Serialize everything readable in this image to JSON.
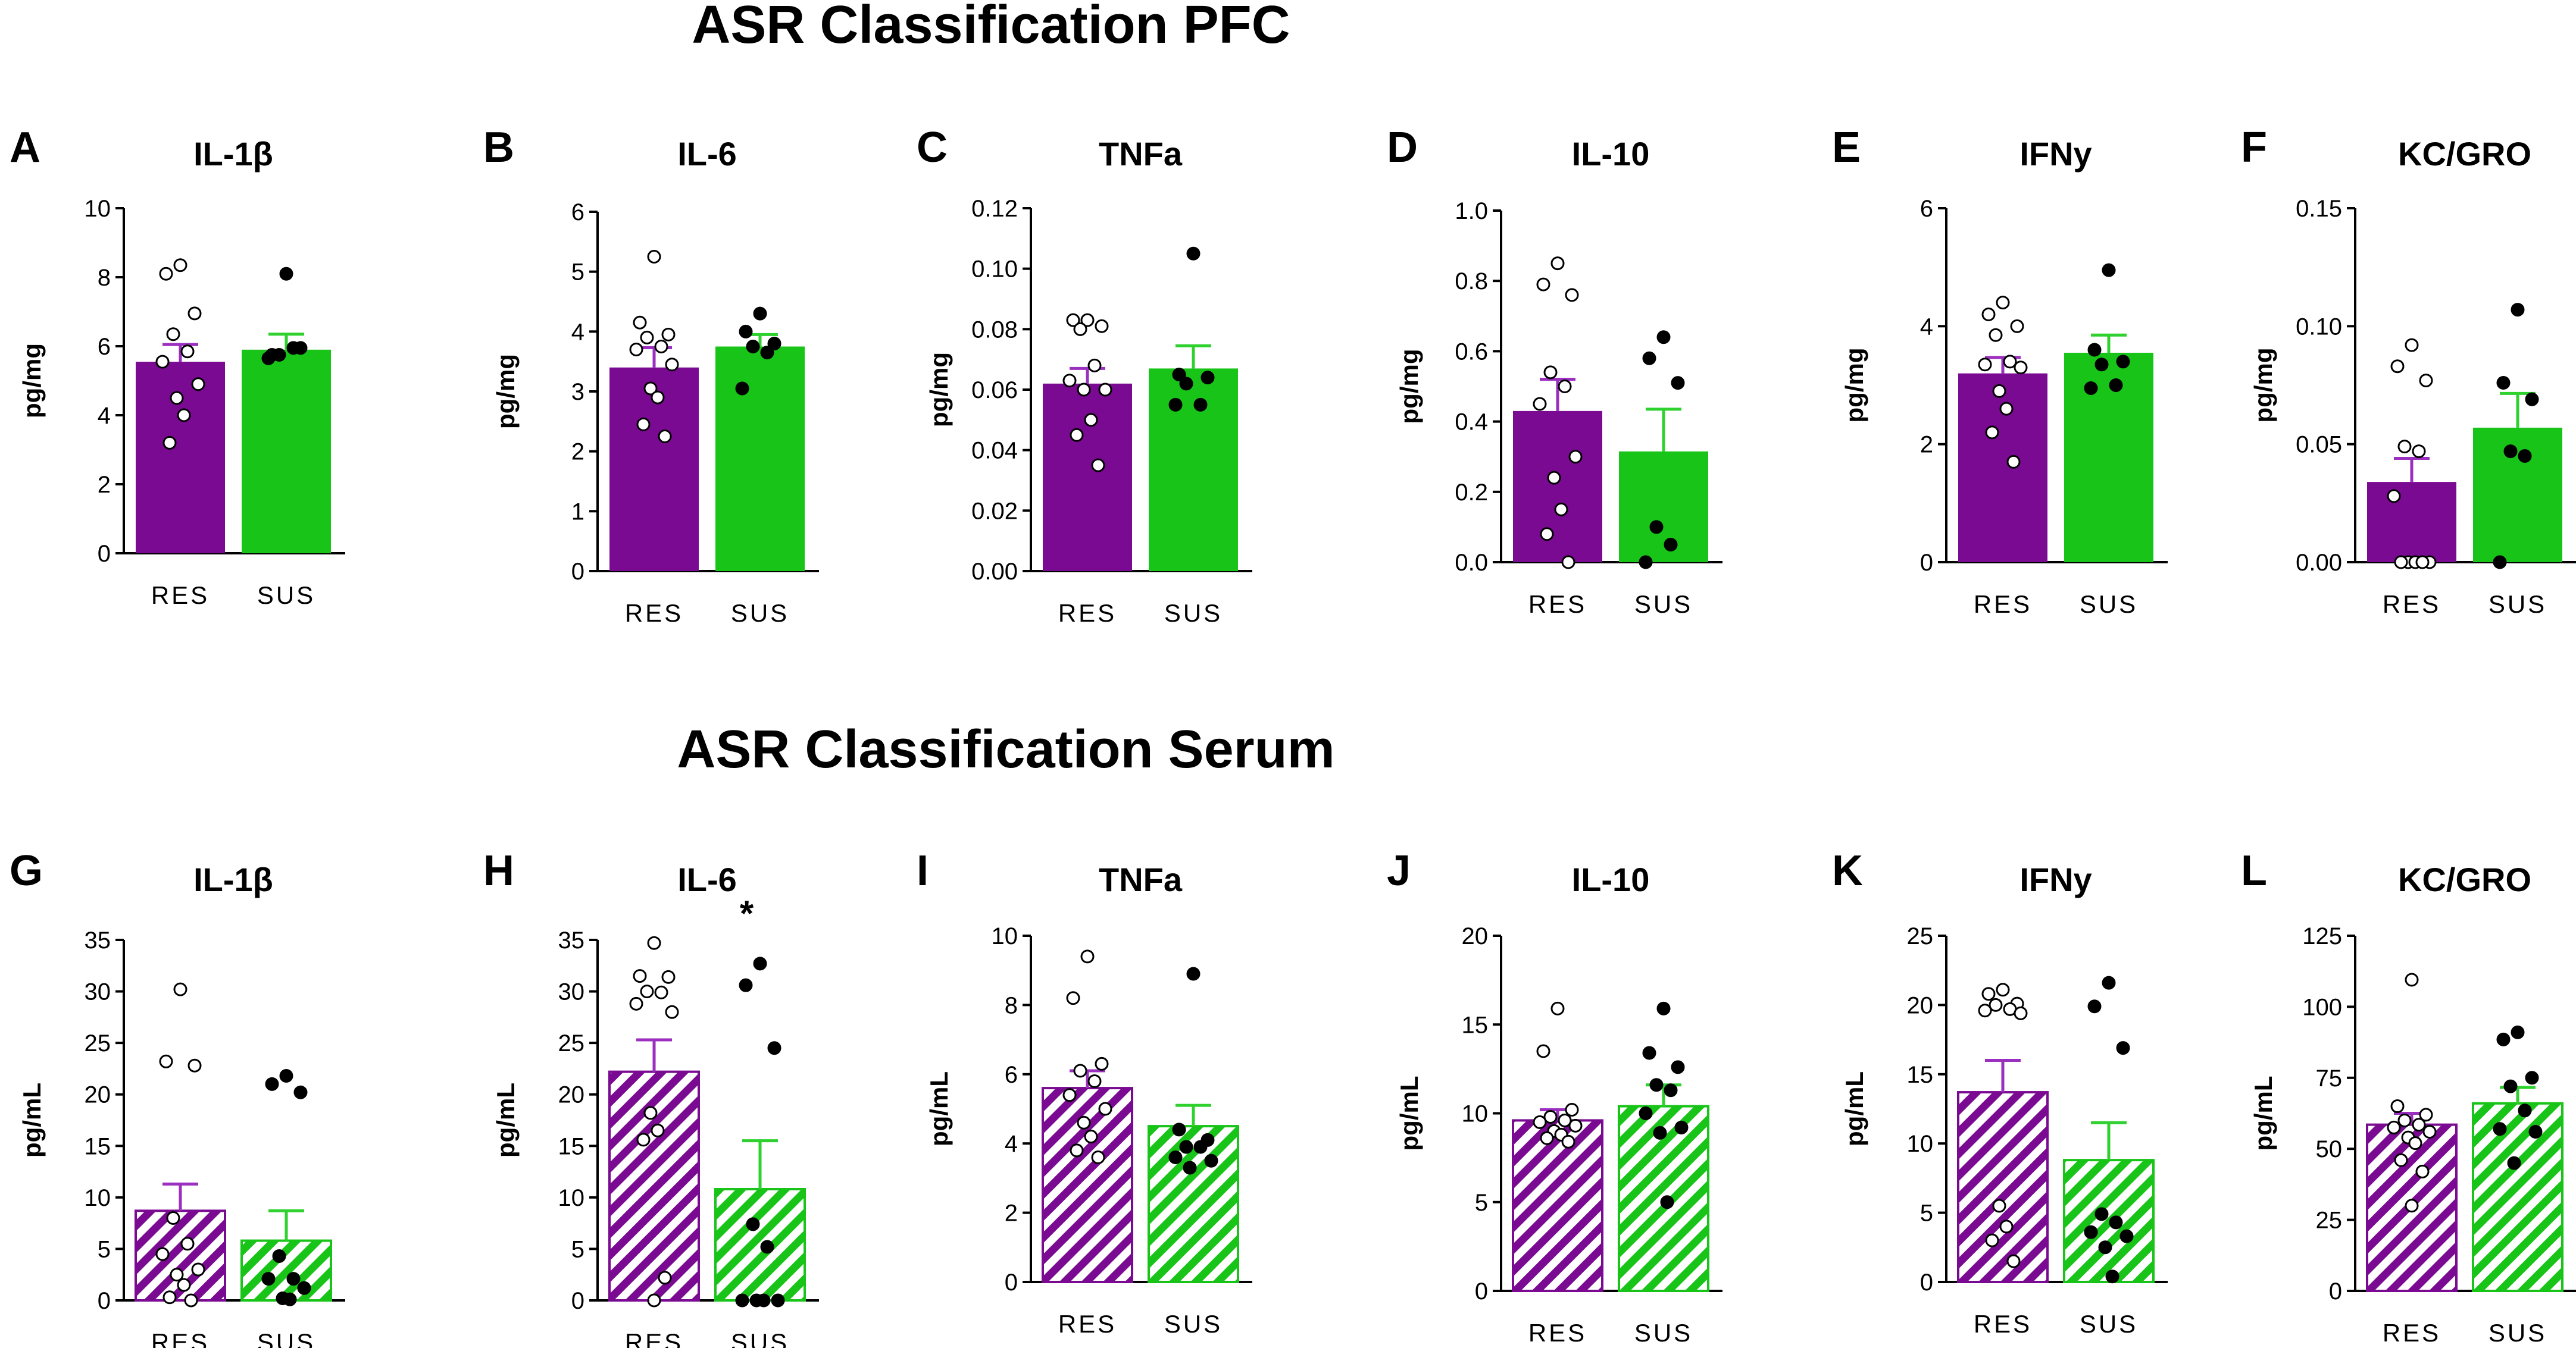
{
  "figure": {
    "row_titles": [
      "ASR Classification PFC",
      "ASR Classification Serum"
    ]
  },
  "colors": {
    "res": "#7a0a91",
    "sus": "#17c417",
    "res_error": "#9b2fbf",
    "sus_error": "#2fd12f",
    "open_point_fill": "#ffffff",
    "closed_point_fill": "#000000",
    "point_stroke": "#000000"
  },
  "chart_data": [
    {
      "type": "bar",
      "letter": "A",
      "title": "IL-1β",
      "ylabel": "pg/mg",
      "categories": [
        "RES",
        "SUS"
      ],
      "ylim": [
        0,
        10
      ],
      "yticks": [
        "0",
        "2",
        "4",
        "6",
        "8",
        "10"
      ],
      "tick_values": [
        0,
        2,
        4,
        6,
        8,
        10
      ],
      "pattern": "solid",
      "significance": "",
      "series": [
        {
          "name": "RES",
          "mean": 5.55,
          "sem": 0.5,
          "marker": "open",
          "points": [
            8.35,
            8.1,
            6.95,
            6.35,
            5.85,
            5.55,
            4.9,
            4.5,
            4.0,
            3.2
          ]
        },
        {
          "name": "SUS",
          "mean": 5.9,
          "sem": 0.45,
          "marker": "closed",
          "points": [
            8.1,
            5.75,
            5.95,
            5.75,
            5.95,
            5.65
          ]
        }
      ]
    },
    {
      "type": "bar",
      "letter": "B",
      "title": "IL-6",
      "ylabel": "pg/mg",
      "categories": [
        "RES",
        "SUS"
      ],
      "ylim": [
        0,
        6
      ],
      "yticks": [
        "0",
        "1",
        "2",
        "3",
        "4",
        "5",
        "6"
      ],
      "tick_values": [
        0,
        1,
        2,
        3,
        4,
        5,
        6
      ],
      "pattern": "solid",
      "significance": "",
      "series": [
        {
          "name": "RES",
          "mean": 3.4,
          "sem": 0.33,
          "marker": "open",
          "points": [
            5.25,
            4.15,
            3.95,
            3.9,
            3.75,
            3.7,
            3.45,
            3.05,
            2.9,
            2.45,
            2.25
          ]
        },
        {
          "name": "SUS",
          "mean": 3.75,
          "sem": 0.2,
          "marker": "closed",
          "points": [
            4.3,
            4.0,
            3.8,
            3.75,
            3.65,
            3.05
          ]
        }
      ]
    },
    {
      "type": "bar",
      "letter": "C",
      "title": "TNFa",
      "ylabel": "pg/mg",
      "categories": [
        "RES",
        "SUS"
      ],
      "ylim": [
        0,
        0.12
      ],
      "yticks": [
        "0.00",
        "0.02",
        "0.04",
        "0.06",
        "0.08",
        "0.10",
        "0.12"
      ],
      "tick_values": [
        0,
        0.02,
        0.04,
        0.06,
        0.08,
        0.1,
        0.12
      ],
      "pattern": "solid",
      "significance": "",
      "series": [
        {
          "name": "RES",
          "mean": 0.062,
          "sem": 0.005,
          "marker": "open",
          "points": [
            0.083,
            0.083,
            0.081,
            0.08,
            0.068,
            0.063,
            0.06,
            0.06,
            0.05,
            0.045,
            0.035
          ]
        },
        {
          "name": "SUS",
          "mean": 0.067,
          "sem": 0.0075,
          "marker": "closed",
          "points": [
            0.105,
            0.065,
            0.064,
            0.062,
            0.055,
            0.055
          ]
        }
      ]
    },
    {
      "type": "bar",
      "letter": "D",
      "title": "IL-10",
      "ylabel": "pg/mg",
      "categories": [
        "RES",
        "SUS"
      ],
      "ylim": [
        0,
        1.0
      ],
      "yticks": [
        "0.0",
        "0.2",
        "0.4",
        "0.6",
        "0.8",
        "1.0"
      ],
      "tick_values": [
        0,
        0.2,
        0.4,
        0.6,
        0.8,
        1.0
      ],
      "pattern": "solid",
      "significance": "",
      "series": [
        {
          "name": "RES",
          "mean": 0.43,
          "sem": 0.09,
          "marker": "open",
          "points": [
            0.85,
            0.79,
            0.76,
            0.54,
            0.5,
            0.45,
            0.3,
            0.24,
            0.15,
            0.08,
            0.0
          ]
        },
        {
          "name": "SUS",
          "mean": 0.315,
          "sem": 0.12,
          "marker": "closed",
          "points": [
            0.64,
            0.58,
            0.51,
            0.1,
            0.05,
            0.0
          ]
        }
      ]
    },
    {
      "type": "bar",
      "letter": "E",
      "title": "IFNy",
      "ylabel": "pg/mg",
      "categories": [
        "RES",
        "SUS"
      ],
      "ylim": [
        0,
        6
      ],
      "yticks": [
        "0",
        "2",
        "4",
        "6"
      ],
      "tick_values": [
        0,
        2,
        4,
        6
      ],
      "pattern": "solid",
      "significance": "",
      "series": [
        {
          "name": "RES",
          "mean": 3.2,
          "sem": 0.27,
          "marker": "open",
          "points": [
            4.4,
            4.2,
            4.0,
            3.85,
            3.4,
            3.35,
            3.3,
            2.9,
            2.6,
            2.2,
            1.7
          ]
        },
        {
          "name": "SUS",
          "mean": 3.55,
          "sem": 0.3,
          "marker": "closed",
          "points": [
            4.95,
            3.6,
            3.4,
            3.35,
            3.0,
            2.95
          ]
        }
      ]
    },
    {
      "type": "bar",
      "letter": "F",
      "title": "KC/GRO",
      "ylabel": "pg/mg",
      "categories": [
        "RES",
        "SUS"
      ],
      "ylim": [
        0,
        0.15
      ],
      "yticks": [
        "0.00",
        "0.05",
        "0.10",
        "0.15"
      ],
      "tick_values": [
        0,
        0.05,
        0.1,
        0.15
      ],
      "pattern": "solid",
      "significance": "",
      "series": [
        {
          "name": "RES",
          "mean": 0.034,
          "sem": 0.01,
          "marker": "open",
          "points": [
            0.092,
            0.083,
            0.077,
            0.049,
            0.047,
            0.028,
            0.0,
            0.0,
            0.0,
            0.0,
            0.0
          ]
        },
        {
          "name": "SUS",
          "mean": 0.057,
          "sem": 0.0145,
          "marker": "closed",
          "points": [
            0.107,
            0.076,
            0.069,
            0.047,
            0.045,
            0.0
          ]
        }
      ]
    },
    {
      "type": "bar",
      "letter": "G",
      "title": "IL-1β",
      "ylabel": "pg/mL",
      "categories": [
        "RES",
        "SUS"
      ],
      "ylim": [
        0,
        35
      ],
      "yticks": [
        "0",
        "5",
        "10",
        "15",
        "20",
        "25",
        "30",
        "35"
      ],
      "tick_values": [
        0,
        5,
        10,
        15,
        20,
        25,
        30,
        35
      ],
      "pattern": "hatched",
      "significance": "",
      "series": [
        {
          "name": "RES",
          "mean": 8.7,
          "sem": 2.6,
          "marker": "open",
          "points": [
            30.2,
            23.2,
            22.8,
            8.0,
            5.5,
            4.5,
            3.0,
            2.5,
            1.5,
            0.3,
            0.0
          ]
        },
        {
          "name": "SUS",
          "mean": 5.8,
          "sem": 2.9,
          "marker": "closed",
          "points": [
            21.8,
            21.0,
            20.2,
            4.3,
            2.1,
            2.1,
            1.2,
            0.2,
            0.1
          ]
        }
      ]
    },
    {
      "type": "bar",
      "letter": "H",
      "title": "IL-6",
      "ylabel": "pg/mL",
      "categories": [
        "RES",
        "SUS"
      ],
      "ylim": [
        0,
        35
      ],
      "yticks": [
        "0",
        "5",
        "10",
        "15",
        "20",
        "25",
        "30",
        "35"
      ],
      "tick_values": [
        0,
        5,
        10,
        15,
        20,
        25,
        30,
        35
      ],
      "pattern": "hatched",
      "significance": "*",
      "series": [
        {
          "name": "RES",
          "mean": 22.2,
          "sem": 3.1,
          "marker": "open",
          "points": [
            34.7,
            31.5,
            31.4,
            30.0,
            29.9,
            28.8,
            28.0,
            18.2,
            16.5,
            15.6,
            2.2,
            0.0
          ]
        },
        {
          "name": "SUS",
          "mean": 10.8,
          "sem": 4.7,
          "marker": "closed",
          "points": [
            32.7,
            30.6,
            24.5,
            7.4,
            5.2,
            0.0,
            0.0,
            0.0,
            0.0
          ]
        }
      ]
    },
    {
      "type": "bar",
      "letter": "I",
      "title": "TNFa",
      "ylabel": "pg/mL",
      "categories": [
        "RES",
        "SUS"
      ],
      "ylim": [
        0,
        10
      ],
      "yticks": [
        "0",
        "2",
        "4",
        "6",
        "8",
        "10"
      ],
      "tick_values": [
        0,
        2,
        4,
        6,
        8,
        10
      ],
      "pattern": "hatched",
      "significance": "",
      "series": [
        {
          "name": "RES",
          "mean": 5.6,
          "sem": 0.5,
          "marker": "open",
          "points": [
            9.4,
            8.2,
            6.3,
            6.1,
            5.8,
            5.4,
            5.0,
            4.6,
            4.2,
            3.8,
            3.6
          ]
        },
        {
          "name": "SUS",
          "mean": 4.5,
          "sem": 0.6,
          "marker": "closed",
          "points": [
            8.9,
            4.4,
            4.1,
            3.9,
            3.9,
            3.6,
            3.5,
            3.3
          ]
        }
      ]
    },
    {
      "type": "bar",
      "letter": "J",
      "title": "IL-10",
      "ylabel": "pg/mL",
      "categories": [
        "RES",
        "SUS"
      ],
      "ylim": [
        0,
        20
      ],
      "yticks": [
        "0",
        "5",
        "10",
        "15",
        "20"
      ],
      "tick_values": [
        0,
        5,
        10,
        15,
        20
      ],
      "pattern": "hatched",
      "significance": "",
      "series": [
        {
          "name": "RES",
          "mean": 9.6,
          "sem": 0.6,
          "marker": "open",
          "points": [
            15.9,
            13.5,
            10.2,
            9.8,
            9.6,
            9.5,
            9.3,
            9.0,
            8.8,
            8.6,
            8.4
          ]
        },
        {
          "name": "SUS",
          "mean": 10.4,
          "sem": 1.2,
          "marker": "closed",
          "points": [
            15.9,
            13.4,
            12.6,
            11.6,
            11.3,
            10.0,
            9.2,
            8.9,
            5.0
          ]
        }
      ]
    },
    {
      "type": "bar",
      "letter": "K",
      "title": "IFNy",
      "ylabel": "pg/mL",
      "categories": [
        "RES",
        "SUS"
      ],
      "ylim": [
        0,
        25
      ],
      "yticks": [
        "0",
        "5",
        "10",
        "15",
        "20",
        "25"
      ],
      "tick_values": [
        0,
        5,
        10,
        15,
        20,
        25
      ],
      "pattern": "hatched",
      "significance": "",
      "series": [
        {
          "name": "RES",
          "mean": 13.7,
          "sem": 2.3,
          "marker": "open",
          "points": [
            21.1,
            20.8,
            20.1,
            20.0,
            19.7,
            19.6,
            19.4,
            5.5,
            4.0,
            3.0,
            1.5
          ]
        },
        {
          "name": "SUS",
          "mean": 8.8,
          "sem": 2.7,
          "marker": "closed",
          "points": [
            21.6,
            19.9,
            16.9,
            4.9,
            4.3,
            3.6,
            3.3,
            2.5,
            0.4
          ]
        }
      ]
    },
    {
      "type": "bar",
      "letter": "L",
      "title": "KC/GRO",
      "ylabel": "pg/mL",
      "categories": [
        "RES",
        "SUS"
      ],
      "ylim": [
        0,
        125
      ],
      "yticks": [
        "0",
        "25",
        "50",
        "75",
        "100",
        "125"
      ],
      "tick_values": [
        0,
        25,
        50,
        75,
        100,
        125
      ],
      "pattern": "hatched",
      "significance": "",
      "series": [
        {
          "name": "RES",
          "mean": 58.5,
          "sem": 4.0,
          "marker": "open",
          "points": [
            109.5,
            65.0,
            62.0,
            60.0,
            58.5,
            57.5,
            56.0,
            54.0,
            52.0,
            46.0,
            42.0,
            30.0
          ]
        },
        {
          "name": "SUS",
          "mean": 66.0,
          "sem": 5.6,
          "marker": "closed",
          "points": [
            91.0,
            88.5,
            75.0,
            72.0,
            63.5,
            57.0,
            56.0,
            45.0
          ]
        }
      ]
    }
  ]
}
